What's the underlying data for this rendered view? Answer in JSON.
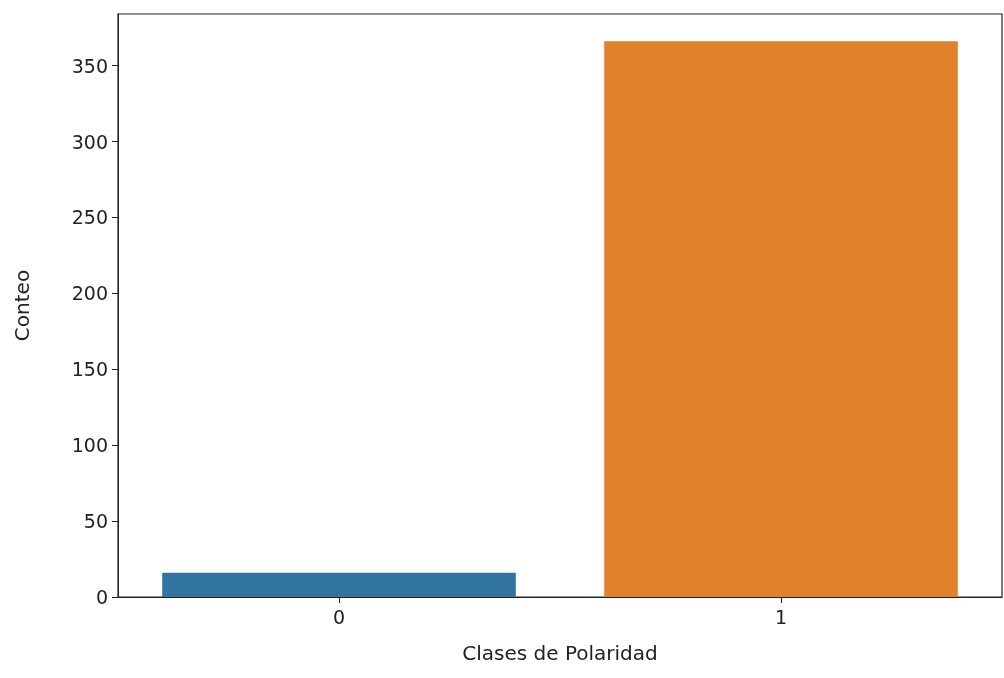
{
  "chart_data": {
    "type": "bar",
    "xlabel": "Clases de Polaridad",
    "ylabel": "Conteo",
    "categories": [
      "0",
      "1"
    ],
    "values": [
      16,
      366
    ],
    "colors": [
      "#3274a1",
      "#e1812c"
    ],
    "ylim": [
      0,
      384
    ],
    "yticks": [
      0,
      50,
      100,
      150,
      200,
      250,
      300,
      350
    ],
    "grid": false
  }
}
